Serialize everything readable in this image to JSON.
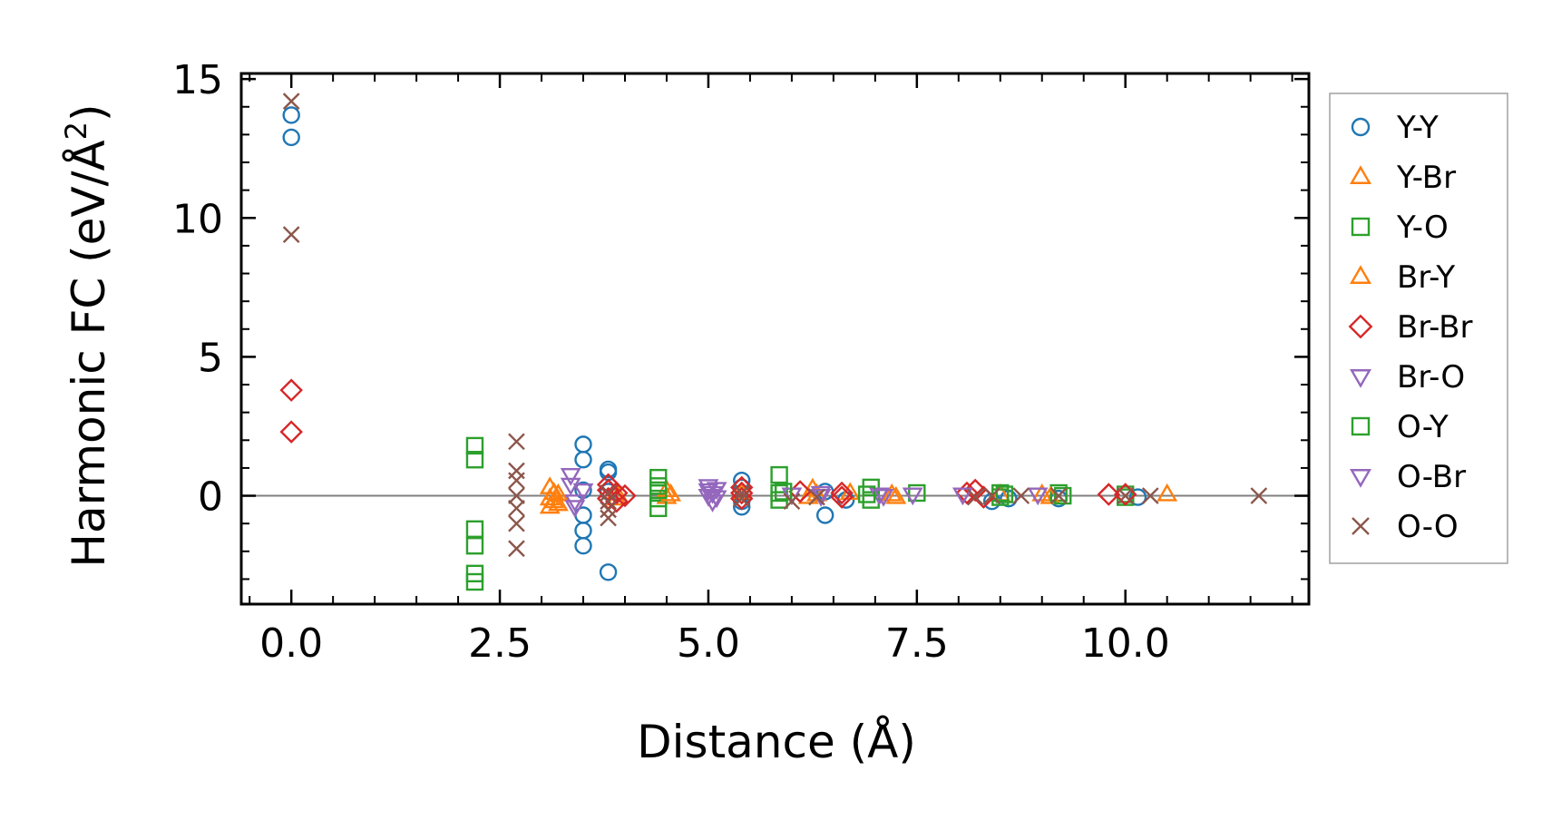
{
  "chart_data": {
    "type": "scatter",
    "title": "",
    "xlabel": "Distance (Å)",
    "ylabel_main": "Harmonic FC (eV/Å",
    "ylabel_sup": "2",
    "ylabel_tail": ")",
    "xlim": [
      -0.6,
      12.2
    ],
    "ylim": [
      -3.9,
      15.2
    ],
    "xticks": [
      0,
      2.5,
      5,
      7.5,
      10
    ],
    "xtick_labels": [
      "0.0",
      "2.5",
      "5.0",
      "7.5",
      "10.0"
    ],
    "yticks": [
      0,
      5,
      10,
      15
    ],
    "ytick_labels": [
      "0",
      "5",
      "10",
      "15"
    ],
    "zero_line": true,
    "grid": false,
    "legend_position": "right-outside",
    "series": [
      {
        "name": "Y-Y",
        "marker": "circle",
        "color": "#1f77b4",
        "points": [
          [
            0,
            13.7
          ],
          [
            0,
            12.9
          ],
          [
            3.5,
            1.85
          ],
          [
            3.5,
            1.3
          ],
          [
            3.5,
            0.2
          ],
          [
            3.5,
            -0.7
          ],
          [
            3.5,
            -1.25
          ],
          [
            3.5,
            -1.8
          ],
          [
            3.8,
            0.95
          ],
          [
            3.8,
            0.85
          ],
          [
            3.8,
            0.15
          ],
          [
            3.8,
            -2.75
          ],
          [
            5.4,
            0.55
          ],
          [
            5.4,
            0.3
          ],
          [
            5.4,
            -0.2
          ],
          [
            5.4,
            -0.4
          ],
          [
            6.4,
            0.15
          ],
          [
            6.4,
            -0.7
          ],
          [
            6.65,
            -0.15
          ],
          [
            8.4,
            -0.2
          ],
          [
            8.6,
            -0.1
          ],
          [
            9.2,
            -0.1
          ],
          [
            10.15,
            -0.05
          ]
        ]
      },
      {
        "name": "Y-Br",
        "marker": "triangle-up",
        "color": "#ff7f0e",
        "points": [
          [
            3.1,
            0.3
          ],
          [
            3.1,
            -0.1
          ],
          [
            3.1,
            -0.4
          ],
          [
            3.2,
            0.05
          ],
          [
            3.2,
            -0.3
          ],
          [
            3.9,
            0.1
          ],
          [
            3.9,
            -0.1
          ],
          [
            4.5,
            0.2
          ],
          [
            4.5,
            -0.05
          ],
          [
            5.4,
            0.1
          ],
          [
            6.25,
            0.25
          ],
          [
            6.3,
            0.05
          ],
          [
            6.7,
            0.1
          ],
          [
            7.2,
            0.05
          ],
          [
            8.5,
            0.05
          ],
          [
            9.0,
            0.05
          ],
          [
            10.5,
            0.05
          ]
        ]
      },
      {
        "name": "Y-O",
        "marker": "square",
        "color": "#2ca02c",
        "points": [
          [
            2.2,
            1.8
          ],
          [
            2.2,
            1.3
          ],
          [
            2.2,
            -1.2
          ],
          [
            2.2,
            -1.8
          ],
          [
            2.2,
            -2.8
          ],
          [
            2.2,
            -3.1
          ],
          [
            4.4,
            0.65
          ],
          [
            4.4,
            0.35
          ],
          [
            4.4,
            0.1
          ],
          [
            4.4,
            -0.1
          ],
          [
            4.4,
            -0.45
          ],
          [
            5.85,
            0.75
          ],
          [
            5.85,
            0.1
          ],
          [
            5.85,
            -0.15
          ],
          [
            6.95,
            0.3
          ],
          [
            6.95,
            -0.15
          ],
          [
            7.5,
            0.1
          ],
          [
            8.5,
            0.1
          ],
          [
            8.5,
            -0.05
          ],
          [
            9.2,
            0.1
          ],
          [
            10.0,
            0.05
          ],
          [
            10.0,
            -0.05
          ]
        ]
      },
      {
        "name": "Br-Y",
        "marker": "triangle-up",
        "color": "#ff7f0e",
        "points": [
          [
            3.15,
            0.1
          ],
          [
            3.15,
            -0.2
          ],
          [
            4.55,
            0.05
          ],
          [
            6.2,
            -0.05
          ],
          [
            7.25,
            -0.05
          ],
          [
            9.1,
            -0.05
          ]
        ]
      },
      {
        "name": "Br-Br",
        "marker": "diamond",
        "color": "#d62728",
        "points": [
          [
            0,
            3.8
          ],
          [
            0,
            2.3
          ],
          [
            3.8,
            0.4
          ],
          [
            3.8,
            0.2
          ],
          [
            3.8,
            -0.1
          ],
          [
            3.9,
            0.1
          ],
          [
            3.9,
            -0.2
          ],
          [
            4.0,
            0.0
          ],
          [
            5.4,
            0.3
          ],
          [
            5.4,
            0.1
          ],
          [
            5.4,
            -0.1
          ],
          [
            6.1,
            0.15
          ],
          [
            6.6,
            0.1
          ],
          [
            6.6,
            -0.05
          ],
          [
            8.1,
            0.1
          ],
          [
            8.2,
            0.2
          ],
          [
            8.3,
            -0.05
          ],
          [
            9.8,
            0.05
          ],
          [
            10.0,
            0.05
          ]
        ]
      },
      {
        "name": "Br-O",
        "marker": "triangle-down",
        "color": "#9467bd",
        "points": [
          [
            3.35,
            0.75
          ],
          [
            3.35,
            0.4
          ],
          [
            3.4,
            -0.2
          ],
          [
            3.4,
            -0.4
          ],
          [
            5.0,
            0.35
          ],
          [
            5.0,
            0.2
          ],
          [
            5.0,
            0.0
          ],
          [
            5.05,
            -0.2
          ],
          [
            5.1,
            0.25
          ],
          [
            5.1,
            -0.05
          ],
          [
            6.0,
            0.05
          ],
          [
            6.35,
            0.1
          ],
          [
            7.05,
            0.05
          ],
          [
            7.45,
            0.05
          ],
          [
            8.05,
            0.05
          ],
          [
            8.95,
            0.05
          ]
        ]
      },
      {
        "name": "O-Y",
        "marker": "square",
        "color": "#2ca02c",
        "points": [
          [
            4.4,
            0.2
          ],
          [
            5.9,
            0.15
          ],
          [
            6.9,
            0.05
          ],
          [
            8.55,
            0.05
          ],
          [
            9.25,
            0.0
          ]
        ]
      },
      {
        "name": "O-Br",
        "marker": "triangle-down",
        "color": "#9467bd",
        "points": [
          [
            3.5,
            0.2
          ],
          [
            5.05,
            0.1
          ],
          [
            6.35,
            0.0
          ],
          [
            7.1,
            0.0
          ]
        ]
      },
      {
        "name": "O-O",
        "marker": "x",
        "color": "#8c564b",
        "points": [
          [
            0,
            14.2
          ],
          [
            0,
            9.4
          ],
          [
            2.7,
            1.95
          ],
          [
            2.7,
            0.9
          ],
          [
            2.7,
            0.55
          ],
          [
            2.7,
            0.0
          ],
          [
            2.7,
            -0.45
          ],
          [
            2.7,
            -1.0
          ],
          [
            2.7,
            -1.9
          ],
          [
            3.8,
            0.1
          ],
          [
            3.8,
            -0.2
          ],
          [
            3.8,
            -0.5
          ],
          [
            3.8,
            -0.8
          ],
          [
            5.4,
            0.1
          ],
          [
            5.4,
            -0.1
          ],
          [
            6.0,
            -0.2
          ],
          [
            6.3,
            -0.05
          ],
          [
            8.2,
            -0.05
          ],
          [
            8.4,
            0.0
          ],
          [
            8.75,
            0.0
          ],
          [
            9.2,
            0.0
          ],
          [
            10.0,
            0.0
          ],
          [
            10.3,
            0.0
          ],
          [
            11.6,
            0.0
          ]
        ]
      }
    ]
  }
}
